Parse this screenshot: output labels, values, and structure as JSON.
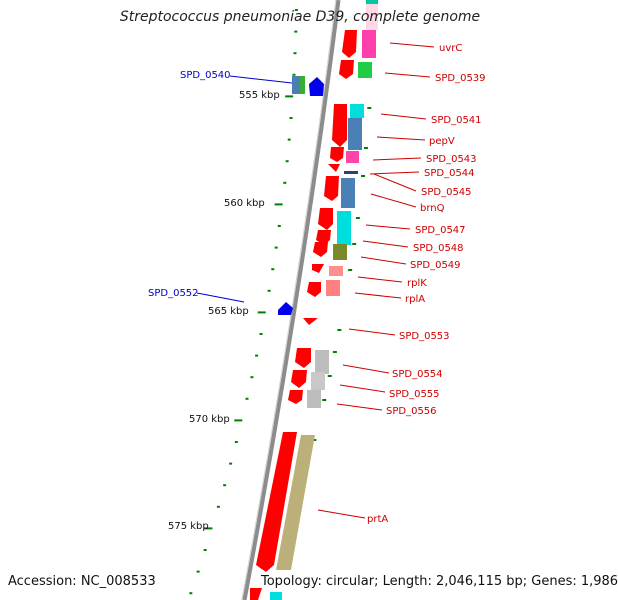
{
  "title": "Streptococcus pneumoniae D39, complete genome",
  "footer": {
    "accession": "Accession: NC_008533",
    "topology": "Topology: circular; Length: 2,046,115 bp; Genes: 1,986"
  },
  "colors": {
    "backbone": "#808080",
    "strand_forward_gene": "#ff0000",
    "left_label": "#0000cc",
    "right_label": "#cc0000",
    "tick": "#008000"
  },
  "scale": {
    "unit": "kbp",
    "labels": [
      "555 kbp",
      "560 kbp",
      "565 kbp",
      "570 kbp",
      "575 kbp"
    ]
  },
  "genes_left": [
    {
      "label": "SPD_0540"
    },
    {
      "label": "SPD_0552"
    }
  ],
  "genes_right": [
    {
      "label": "uvrC"
    },
    {
      "label": "SPD_0539"
    },
    {
      "label": "SPD_0541"
    },
    {
      "label": "pepV"
    },
    {
      "label": "SPD_0543"
    },
    {
      "label": "SPD_0544"
    },
    {
      "label": "SPD_0545"
    },
    {
      "label": "brnQ"
    },
    {
      "label": "SPD_0547"
    },
    {
      "label": "SPD_0548"
    },
    {
      "label": "SPD_0549"
    },
    {
      "label": "rplK"
    },
    {
      "label": "rplA"
    },
    {
      "label": "SPD_0553"
    },
    {
      "label": "SPD_0554"
    },
    {
      "label": "SPD_0555"
    },
    {
      "label": "SPD_0556"
    },
    {
      "label": "prtA"
    }
  ]
}
